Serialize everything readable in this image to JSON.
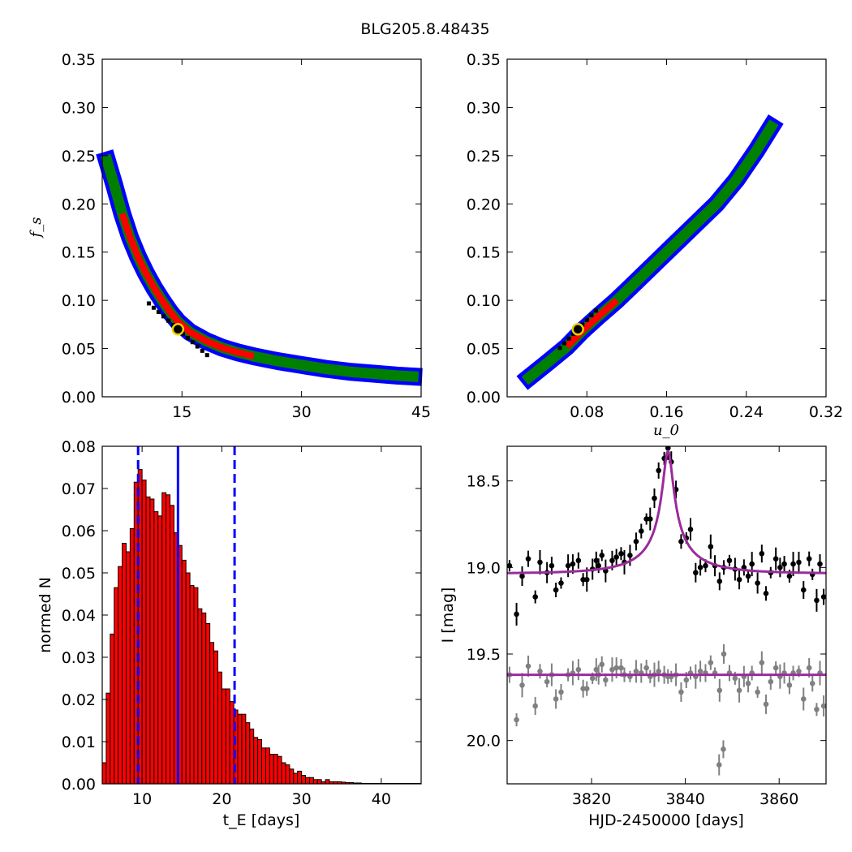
{
  "figure": {
    "title": "BLG205.8.48435"
  },
  "chart_data": [
    {
      "id": "tE-fs",
      "type": "heatmap",
      "title": "",
      "xlabel": "",
      "ylabel": "f_s",
      "xlim": [
        5,
        45
      ],
      "ylim": [
        0,
        0.35
      ],
      "xticks": [
        "15",
        "30",
        "45"
      ],
      "yticks": [
        "0.00",
        "0.05",
        "0.10",
        "0.15",
        "0.20",
        "0.25",
        "0.30",
        "0.35"
      ],
      "colors": {
        "outer": "#0000ff",
        "middle": "#008000",
        "inner": "#ff0000",
        "core": "#000000"
      },
      "curve_x": [
        5.6,
        6.5,
        7.5,
        8.5,
        9.5,
        10.5,
        11.5,
        12.5,
        13.5,
        14.5,
        16,
        18,
        20,
        22,
        24,
        27,
        30,
        33,
        36,
        39,
        42,
        44
      ],
      "curve_y": [
        0.245,
        0.22,
        0.19,
        0.165,
        0.145,
        0.128,
        0.113,
        0.1,
        0.088,
        0.078,
        0.067,
        0.058,
        0.051,
        0.046,
        0.042,
        0.037,
        0.033,
        0.029,
        0.026,
        0.024,
        0.022,
        0.021
      ],
      "best_fit": {
        "x": 14.5,
        "y": 0.07
      }
    },
    {
      "id": "u0-fs",
      "type": "heatmap",
      "title": "",
      "xlabel": "u_0",
      "ylabel": "",
      "xlim": [
        0,
        0.32
      ],
      "ylim": [
        0,
        0.35
      ],
      "xticks": [
        "0.08",
        "0.16",
        "0.24",
        "0.32"
      ],
      "yticks": [
        "0.00",
        "0.05",
        "0.10",
        "0.15",
        "0.20",
        "0.25",
        "0.30",
        "0.35"
      ],
      "colors": {
        "outer": "#0000ff",
        "middle": "#008000",
        "inner": "#ff0000",
        "core": "#000000"
      },
      "curve_x": [
        0.022,
        0.04,
        0.06,
        0.075,
        0.09,
        0.11,
        0.13,
        0.15,
        0.17,
        0.19,
        0.21,
        0.23,
        0.25,
        0.265
      ],
      "curve_y": [
        0.02,
        0.035,
        0.052,
        0.068,
        0.082,
        0.1,
        0.12,
        0.14,
        0.16,
        0.18,
        0.2,
        0.225,
        0.255,
        0.28
      ],
      "best_fit": {
        "x": 0.071,
        "y": 0.07
      }
    },
    {
      "id": "tE-hist",
      "type": "bar",
      "title": "",
      "xlabel": "t_E [days]",
      "ylabel": "normed N",
      "xlim": [
        5,
        45
      ],
      "ylim": [
        0,
        0.08
      ],
      "xticks": [
        "10",
        "20",
        "30",
        "40"
      ],
      "yticks": [
        "0.00",
        "0.01",
        "0.02",
        "0.03",
        "0.04",
        "0.05",
        "0.06",
        "0.07",
        "0.08"
      ],
      "bar_color": "#ff0000",
      "bin_start": 5,
      "bin_width": 0.5,
      "values": [
        0.005,
        0.0215,
        0.0355,
        0.0465,
        0.0515,
        0.057,
        0.055,
        0.0605,
        0.0715,
        0.0745,
        0.072,
        0.068,
        0.0675,
        0.0645,
        0.0635,
        0.069,
        0.0685,
        0.066,
        0.0595,
        0.0565,
        0.053,
        0.05,
        0.047,
        0.0465,
        0.0415,
        0.0405,
        0.038,
        0.0335,
        0.0315,
        0.0265,
        0.0225,
        0.0225,
        0.0195,
        0.0175,
        0.0165,
        0.0165,
        0.0145,
        0.013,
        0.011,
        0.0105,
        0.0085,
        0.0085,
        0.007,
        0.007,
        0.0065,
        0.005,
        0.0045,
        0.0035,
        0.0025,
        0.003,
        0.002,
        0.0015,
        0.0015,
        0.001,
        0.001,
        0.0005,
        0.001,
        0.0005,
        0.0005,
        0.0005,
        0.0004,
        0.0003,
        0.0003,
        0.0002,
        0.0002,
        0.0001,
        0.0001,
        0.0001,
        0.0001,
        0.0001,
        0.0001,
        0.0001,
        0.0001,
        0.0001,
        0.0001,
        0.0001,
        0.0001,
        0.0001,
        0.0001,
        0.0001
      ],
      "median": 14.5,
      "interval": [
        9.5,
        21.6
      ],
      "line_color": "#0000ff"
    },
    {
      "id": "lightcurve",
      "type": "scatter",
      "title": "",
      "xlabel": "HJD-2450000 [days]",
      "ylabel": "I [mag]",
      "xlim": [
        3802,
        3870
      ],
      "ylim": [
        20.25,
        18.3
      ],
      "xticks": [
        "3820",
        "3840",
        "3860"
      ],
      "yticks": [
        "18.5",
        "19.0",
        "19.5",
        "20.0"
      ],
      "model_color": "#9b2b9b",
      "model": {
        "t0": 3836.3,
        "tE": 14.5,
        "u0": 0.071,
        "fs": 0.07,
        "baseline": 19.035
      },
      "residual_baseline": 19.62,
      "series": [
        {
          "name": "",
          "color": "#000000",
          "x": [
            3802.5,
            3804,
            3805.2,
            3806.5,
            3808,
            3809,
            3810.5,
            3811.5,
            3812.4,
            3813.5,
            3815,
            3816,
            3817.2,
            3818.2,
            3819,
            3820.2,
            3821,
            3821.5,
            3822.2,
            3823,
            3824.4,
            3825.3,
            3826.3,
            3827,
            3828.2,
            3829.5,
            3830.6,
            3831.7,
            3832.5,
            3833.4,
            3834.3,
            3835.5,
            3836.3,
            3837,
            3838,
            3839.1,
            3840.2,
            3841.1,
            3842.2,
            3843.2,
            3844.3,
            3845.4,
            3846.3,
            3847.3,
            3848.2,
            3849.4,
            3850.6,
            3851.5,
            3852.5,
            3853.4,
            3854.2,
            3855.4,
            3856.3,
            3857.2,
            3858.2,
            3859.3,
            3860.2,
            3861.1,
            3862.2,
            3863,
            3864.2,
            3865.2,
            3866.4,
            3867.1,
            3868,
            3868.7,
            3869.5
          ],
          "y": [
            18.99,
            19.27,
            19.05,
            18.95,
            19.17,
            18.97,
            19.03,
            18.99,
            19.13,
            19.09,
            18.99,
            18.98,
            18.96,
            19.07,
            19.07,
            19.01,
            18.96,
            18.99,
            18.93,
            19.02,
            18.96,
            18.94,
            18.92,
            18.97,
            18.93,
            18.85,
            18.79,
            18.72,
            18.72,
            18.6,
            18.44,
            18.37,
            18.31,
            18.39,
            18.55,
            18.85,
            18.83,
            18.78,
            19.03,
            19.0,
            18.99,
            18.88,
            18.99,
            19.08,
            19.0,
            18.96,
            19.01,
            19.07,
            19.0,
            19.05,
            18.98,
            19.09,
            18.92,
            19.15,
            19.03,
            18.95,
            19.0,
            18.98,
            19.05,
            18.98,
            18.97,
            19.13,
            18.95,
            19.04,
            19.19,
            18.98,
            19.17
          ]
        },
        {
          "name": "",
          "color": "#808080",
          "x": [
            3802.5,
            3804,
            3805.2,
            3806.5,
            3808,
            3809,
            3810.5,
            3811.5,
            3812.4,
            3813.5,
            3815,
            3816,
            3817.2,
            3818.2,
            3819,
            3820.2,
            3821,
            3821.5,
            3822.2,
            3823,
            3824.4,
            3825.3,
            3826.3,
            3827,
            3828.2,
            3829.5,
            3830.6,
            3831.7,
            3832.5,
            3833.4,
            3834.3,
            3835.5,
            3836.3,
            3837,
            3838,
            3839.1,
            3840.2,
            3841.1,
            3842.2,
            3843.2,
            3844.3,
            3845.4,
            3846.3,
            3847.3,
            3848.2,
            3849.4,
            3850.6,
            3851.5,
            3852.5,
            3853.4,
            3854.2,
            3855.4,
            3856.3,
            3857.2,
            3858.2,
            3859.3,
            3860.2,
            3861.1,
            3862.2,
            3863,
            3864.2,
            3865.2,
            3866.4,
            3867.1,
            3868,
            3868.7,
            3869.5
          ],
          "y": [
            19.62,
            19.88,
            19.68,
            19.57,
            19.8,
            19.6,
            19.66,
            19.62,
            19.76,
            19.72,
            19.62,
            19.61,
            19.59,
            19.7,
            19.7,
            19.64,
            19.59,
            19.62,
            19.56,
            19.65,
            19.59,
            19.58,
            19.58,
            19.62,
            19.63,
            19.6,
            19.61,
            19.58,
            19.63,
            19.62,
            19.6,
            19.62,
            19.63,
            19.63,
            19.62,
            19.72,
            19.65,
            19.61,
            19.63,
            19.6,
            19.61,
            19.55,
            19.61,
            19.71,
            19.5,
            19.61,
            19.64,
            19.71,
            19.63,
            19.67,
            19.61,
            19.72,
            19.55,
            19.79,
            19.66,
            19.58,
            19.63,
            19.61,
            19.68,
            19.61,
            19.6,
            19.76,
            19.58,
            19.67,
            19.82,
            19.61,
            19.8
          ]
        },
        {
          "name": "",
          "color": "#808080",
          "x": [
            3847.2,
            3848.1
          ],
          "y": [
            20.14,
            20.05
          ]
        }
      ]
    }
  ]
}
